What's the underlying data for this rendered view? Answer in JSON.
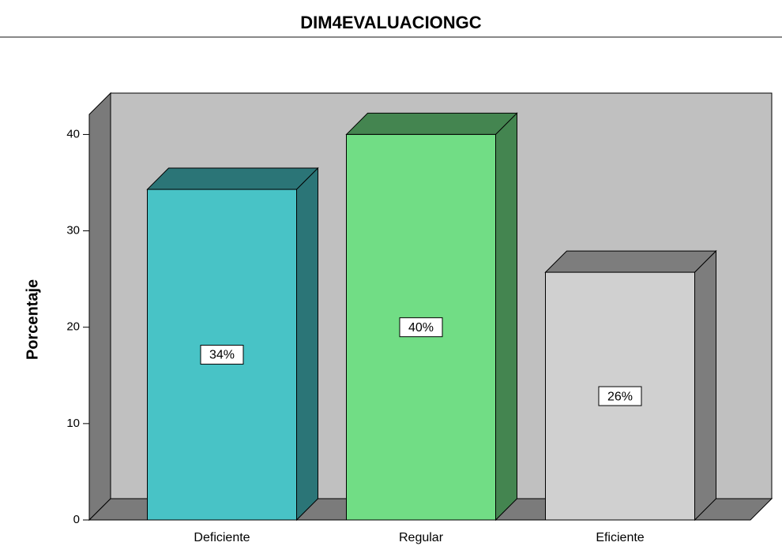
{
  "chart_data": {
    "type": "bar3d",
    "title": "DIM4EVALUACIONGC",
    "y_label": "Porcentaje",
    "categories": [
      "Deficiente",
      "Regular",
      "Eficiente"
    ],
    "values": [
      34.3,
      40,
      25.7
    ],
    "value_labels": [
      "34%",
      "40%",
      "26%"
    ],
    "colors": [
      "#48c3c6",
      "#71dd85",
      "#d0d0d0"
    ],
    "ylim": [
      0,
      42
    ],
    "yticks": [
      0,
      10,
      20,
      30,
      40
    ]
  }
}
